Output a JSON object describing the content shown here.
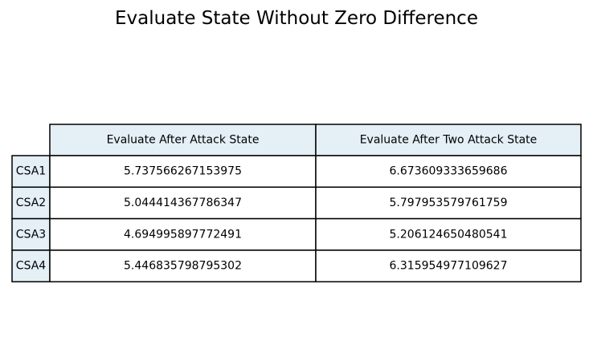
{
  "chart_data": {
    "type": "table",
    "title": "Evaluate State Without Zero Difference",
    "columns": [
      "Evaluate After Attack State",
      "Evaluate After Two Attack State"
    ],
    "rows": [
      "CSA1",
      "CSA2",
      "CSA3",
      "CSA4"
    ],
    "cells": [
      [
        "5.737566267153975",
        "6.673609333659686"
      ],
      [
        "5.044414367786347",
        "5.797953579761759"
      ],
      [
        "4.694995897772491",
        "5.206124650480541"
      ],
      [
        "5.446835798795302",
        "6.315954977109627"
      ]
    ],
    "header_fill": "#e4eff6",
    "cell_fill": "#ffffff",
    "border_color": "#000000"
  }
}
